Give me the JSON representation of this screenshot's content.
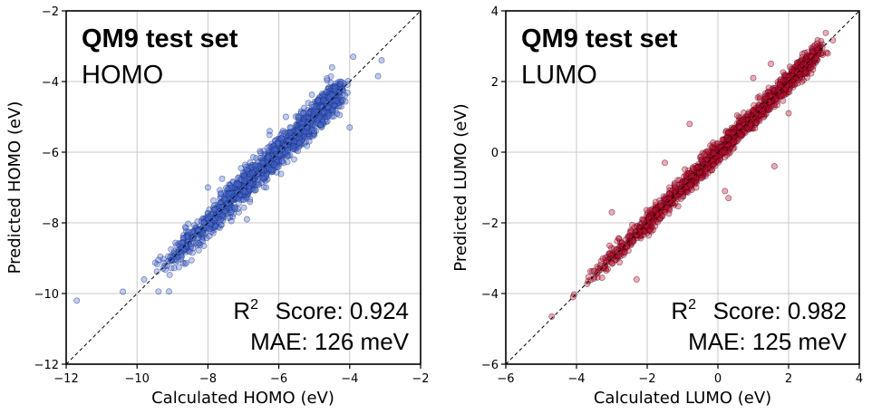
{
  "chart_data": [
    {
      "type": "scatter",
      "panel": "homo",
      "title": "QM9 test set",
      "subtitle": "HOMO",
      "xlabel": "Calculated HOMO (eV)",
      "ylabel": "Predicted HOMO (eV)",
      "xlim": [
        -12,
        -2
      ],
      "ylim": [
        -12,
        -2
      ],
      "xticks": [
        -12,
        -10,
        -8,
        -6,
        -4,
        -2
      ],
      "yticks": [
        -12,
        -10,
        -8,
        -6,
        -4,
        -2
      ],
      "grid": true,
      "diagonal": true,
      "marker_fill": "#4a6fd8",
      "marker_edge": "#1b2f80",
      "r2_label": "Score: 0.924",
      "mae_label": "MAE: 126 meV",
      "r2": 0.924,
      "mae_mev": 126,
      "trend": {
        "x": [
          -9.3,
          -4.3
        ],
        "spread": 0.45
      },
      "outliers": [
        {
          "x": -11.7,
          "y": -10.2
        },
        {
          "x": -10.4,
          "y": -9.95
        },
        {
          "x": -9.4,
          "y": -9.05
        },
        {
          "x": -9.8,
          "y": -9.6
        },
        {
          "x": -3.2,
          "y": -3.85
        },
        {
          "x": -3.1,
          "y": -3.4
        },
        {
          "x": -4.0,
          "y": -5.3
        },
        {
          "x": -4.5,
          "y": -3.6
        },
        {
          "x": -5.3,
          "y": -4.9
        },
        {
          "x": -5.0,
          "y": -5.4
        },
        {
          "x": -7.6,
          "y": -6.75
        },
        {
          "x": -8.0,
          "y": -7.0
        },
        {
          "x": -6.9,
          "y": -7.9
        },
        {
          "x": -3.9,
          "y": -3.3
        },
        {
          "x": -5.8,
          "y": -5.0
        }
      ]
    },
    {
      "type": "scatter",
      "panel": "lumo",
      "title": "QM9 test set",
      "subtitle": "LUMO",
      "xlabel": "Calculated LUMO (eV)",
      "ylabel": "Predicted LUMO (eV)",
      "xlim": [
        -6,
        4
      ],
      "ylim": [
        -6,
        4
      ],
      "xticks": [
        -6,
        -4,
        -2,
        0,
        2,
        4
      ],
      "yticks": [
        -6,
        -4,
        -2,
        0,
        2,
        4
      ],
      "grid": true,
      "diagonal": true,
      "marker_fill": "#cc1133",
      "marker_edge": "#4a0010",
      "r2_label": "Score: 0.982",
      "mae_label": "MAE: 125 meV",
      "r2": 0.982,
      "mae_mev": 125,
      "trend": {
        "x": [
          -3.6,
          2.8
        ],
        "spread": 0.3
      },
      "outliers": [
        {
          "x": -4.7,
          "y": -4.65
        },
        {
          "x": -4.1,
          "y": -4.1
        },
        {
          "x": 0.2,
          "y": -1.1
        },
        {
          "x": 2.0,
          "y": 1.1
        },
        {
          "x": 1.6,
          "y": -0.4
        },
        {
          "x": 1.0,
          "y": 2.1
        },
        {
          "x": -1.5,
          "y": -0.3
        },
        {
          "x": -3.0,
          "y": -1.7
        },
        {
          "x": -0.8,
          "y": 0.8
        },
        {
          "x": 0.3,
          "y": -1.3
        },
        {
          "x": -2.3,
          "y": -3.6
        },
        {
          "x": 1.5,
          "y": 2.5
        }
      ]
    }
  ]
}
